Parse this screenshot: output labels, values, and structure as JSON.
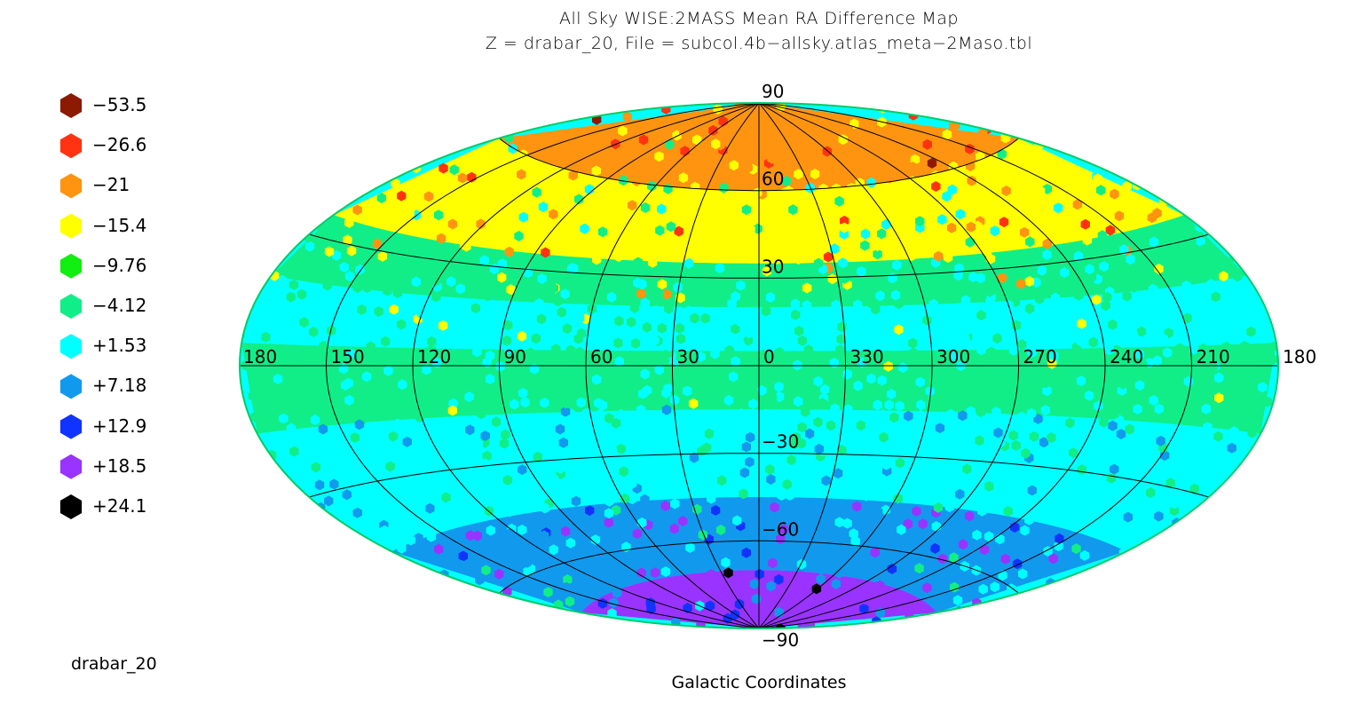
{
  "chart_data": {
    "type": "heatmap",
    "title": "All Sky WISE:2MASS Mean RA Difference Map",
    "subtitle": "Z = drabar_20, File = subcol.4b−allsky.atlas_meta−2Maso.tbl",
    "xlabel": "Galactic Coordinates",
    "corner_label": "drabar_20",
    "projection": "aitoff",
    "longitude_ticks": [
      "180",
      "150",
      "120",
      "90",
      "60",
      "30",
      "0",
      "330",
      "300",
      "270",
      "240",
      "210",
      "180"
    ],
    "latitude_ticks": [
      "90",
      "60",
      "30",
      "−30",
      "−60",
      "−90"
    ],
    "legend": [
      {
        "label": "−53.5",
        "color": "#8b1a00"
      },
      {
        "label": "−26.6",
        "color": "#ff3311"
      },
      {
        "label": "−21",
        "color": "#ff9411"
      },
      {
        "label": "−15.4",
        "color": "#ffff00"
      },
      {
        "label": "−9.76",
        "color": "#11ee11"
      },
      {
        "label": "−4.12",
        "color": "#11ee88"
      },
      {
        "label": "+1.53",
        "color": "#00ffff"
      },
      {
        "label": "+7.18",
        "color": "#1199ee"
      },
      {
        "label": "+12.9",
        "color": "#1133ff"
      },
      {
        "label": "+18.5",
        "color": "#9933ff"
      },
      {
        "label": "+24.1",
        "color": "#000000"
      }
    ],
    "latitude_bands": [
      {
        "lat": [
          60,
          90
        ],
        "dominant": "−21"
      },
      {
        "lat": [
          35,
          60
        ],
        "dominant": "−15.4"
      },
      {
        "lat": [
          20,
          35
        ],
        "dominant": "−4.12"
      },
      {
        "lat": [
          5,
          20
        ],
        "dominant": "+1.53"
      },
      {
        "lat": [
          -15,
          5
        ],
        "dominant": "−4.12"
      },
      {
        "lat": [
          -45,
          -15
        ],
        "dominant": "+1.53"
      },
      {
        "lat": [
          -70,
          -45
        ],
        "dominant": "+7.18"
      },
      {
        "lat": [
          -90,
          -70
        ],
        "dominant": "+18.5"
      }
    ]
  }
}
